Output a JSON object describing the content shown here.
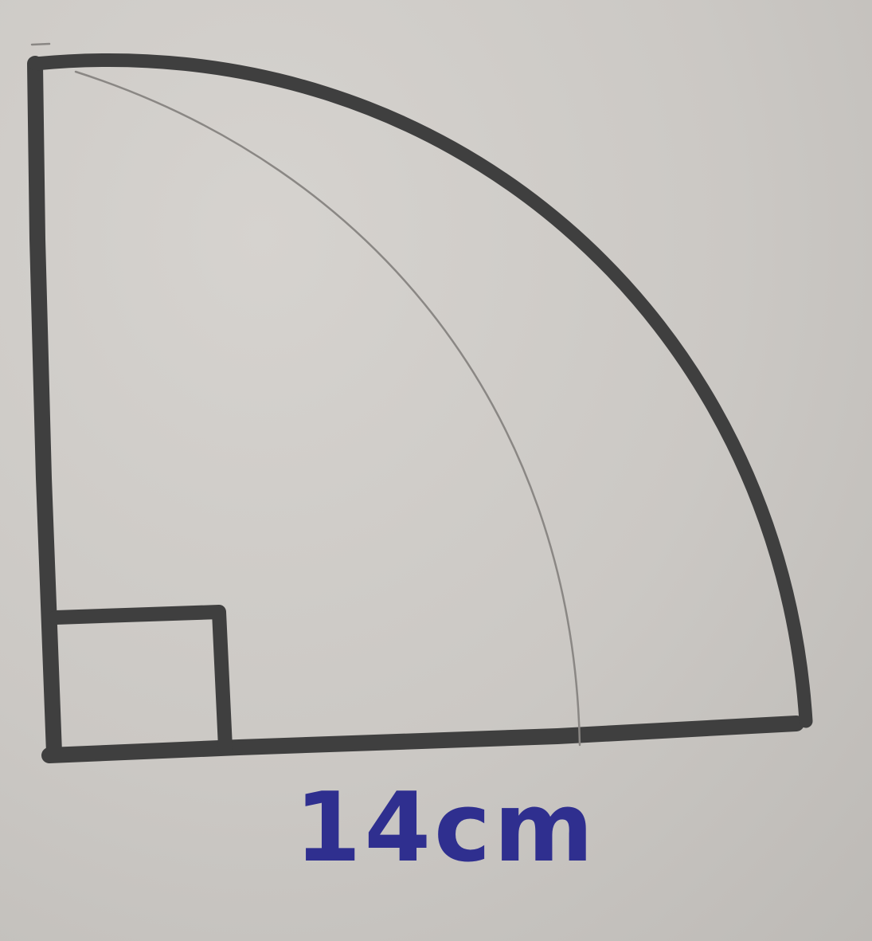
{
  "diagram": {
    "label": "14cm",
    "ink_color": "#2f2f8f",
    "pencil_color": "#3f3f3f"
  }
}
